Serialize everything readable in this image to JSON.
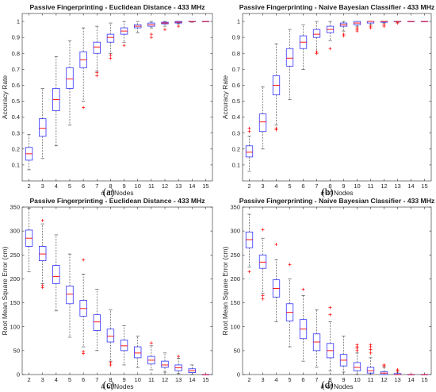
{
  "colors": {
    "box": "#3333ff",
    "median": "#ff0000",
    "whisker": "#333333",
    "outlier": "#ff0000"
  },
  "chart_data": [
    {
      "type": "box",
      "panel_label": "(a)",
      "title": "Passive Fingerprinting - Euclidean Distance - 433 MHz",
      "xlabel": "# of Nodes",
      "ylabel": "Accuracy Rate",
      "categories": [
        "2",
        "3",
        "4",
        "5",
        "6",
        "7",
        "8",
        "9",
        "10",
        "11",
        "12",
        "13",
        "14",
        "15"
      ],
      "ylim": [
        0.0,
        1.05
      ],
      "yticks": [
        0.1,
        0.2,
        0.3,
        0.4,
        0.5,
        0.6,
        0.7,
        0.8,
        0.9,
        1
      ],
      "ytick_labels": [
        "0.1",
        "0.2",
        "0.3",
        "0.4",
        "0.5",
        "0.6",
        "0.7",
        "0.8",
        "0.9",
        "1"
      ],
      "boxes": [
        {
          "min": 0.07,
          "q1": 0.13,
          "median": 0.17,
          "q3": 0.21,
          "max": 0.29,
          "outliers": []
        },
        {
          "min": 0.14,
          "q1": 0.28,
          "median": 0.33,
          "q3": 0.39,
          "max": 0.58,
          "outliers": []
        },
        {
          "min": 0.22,
          "q1": 0.44,
          "median": 0.51,
          "q3": 0.58,
          "max": 0.78,
          "outliers": []
        },
        {
          "min": 0.35,
          "q1": 0.58,
          "median": 0.64,
          "q3": 0.71,
          "max": 0.88,
          "outliers": []
        },
        {
          "min": 0.5,
          "q1": 0.71,
          "median": 0.76,
          "q3": 0.81,
          "max": 0.96,
          "outliers": [
            0.46
          ]
        },
        {
          "min": 0.69,
          "q1": 0.8,
          "median": 0.84,
          "q3": 0.87,
          "max": 0.97,
          "outliers": [
            0.66,
            0.68
          ]
        },
        {
          "min": 0.8,
          "q1": 0.87,
          "median": 0.9,
          "q3": 0.92,
          "max": 0.99,
          "outliers": [
            0.77,
            0.79
          ]
        },
        {
          "min": 0.87,
          "q1": 0.92,
          "median": 0.94,
          "q3": 0.96,
          "max": 1.0,
          "outliers": [
            0.85
          ]
        },
        {
          "min": 0.93,
          "q1": 0.96,
          "median": 0.97,
          "q3": 0.98,
          "max": 1.0,
          "outliers": []
        },
        {
          "min": 0.96,
          "q1": 0.97,
          "median": 0.98,
          "q3": 0.99,
          "max": 1.0,
          "outliers": [
            0.9,
            0.92
          ]
        },
        {
          "min": 0.97,
          "q1": 0.985,
          "median": 0.99,
          "q3": 0.995,
          "max": 1.0,
          "outliers": [
            0.95
          ]
        },
        {
          "min": 0.985,
          "q1": 0.99,
          "median": 0.995,
          "q3": 1.0,
          "max": 1.0,
          "outliers": [
            0.97
          ]
        },
        {
          "min": 0.995,
          "q1": 0.998,
          "median": 1.0,
          "q3": 1.0,
          "max": 1.0,
          "outliers": []
        },
        {
          "min": 1.0,
          "q1": 1.0,
          "median": 1.0,
          "q3": 1.0,
          "max": 1.0,
          "outliers": []
        }
      ]
    },
    {
      "type": "box",
      "panel_label": "(b)",
      "title": "Passive Fingerprinting - Naive Bayesian Classifier - 433 MHz",
      "xlabel": "# of Nodes",
      "ylabel": "Accuracy Rate",
      "categories": [
        "2",
        "3",
        "4",
        "5",
        "6",
        "7",
        "8",
        "9",
        "10",
        "11",
        "12",
        "13",
        "14",
        "15"
      ],
      "ylim": [
        0.0,
        1.05
      ],
      "yticks": [
        0.1,
        0.2,
        0.3,
        0.4,
        0.5,
        0.6,
        0.7,
        0.8,
        0.9,
        1
      ],
      "ytick_labels": [
        "0.1",
        "0.2",
        "0.3",
        "0.4",
        "0.5",
        "0.6",
        "0.7",
        "0.8",
        "0.9",
        "1"
      ],
      "boxes": [
        {
          "min": 0.06,
          "q1": 0.15,
          "median": 0.18,
          "q3": 0.22,
          "max": 0.28,
          "outliers": [
            0.31,
            0.33
          ]
        },
        {
          "min": 0.2,
          "q1": 0.31,
          "median": 0.37,
          "q3": 0.42,
          "max": 0.59,
          "outliers": []
        },
        {
          "min": 0.35,
          "q1": 0.54,
          "median": 0.6,
          "q3": 0.66,
          "max": 0.86,
          "outliers": [
            0.32,
            0.33
          ]
        },
        {
          "min": 0.51,
          "q1": 0.72,
          "median": 0.77,
          "q3": 0.83,
          "max": 0.95,
          "outliers": []
        },
        {
          "min": 0.7,
          "q1": 0.83,
          "median": 0.87,
          "q3": 0.91,
          "max": 0.98,
          "outliers": []
        },
        {
          "min": 0.8,
          "q1": 0.9,
          "median": 0.92,
          "q3": 0.95,
          "max": 1.0,
          "outliers": [
            0.8,
            0.81
          ]
        },
        {
          "min": 0.88,
          "q1": 0.93,
          "median": 0.95,
          "q3": 0.97,
          "max": 1.0,
          "outliers": [
            0.83
          ]
        },
        {
          "min": 0.94,
          "q1": 0.97,
          "median": 0.98,
          "q3": 0.99,
          "max": 1.0,
          "outliers": [
            0.91,
            0.92
          ]
        },
        {
          "min": 0.97,
          "q1": 0.98,
          "median": 0.99,
          "q3": 1.0,
          "max": 1.0,
          "outliers": [
            0.94,
            0.95,
            0.96
          ]
        },
        {
          "min": 0.98,
          "q1": 0.99,
          "median": 1.0,
          "q3": 1.0,
          "max": 1.0,
          "outliers": [
            0.96,
            0.97
          ]
        },
        {
          "min": 0.99,
          "q1": 0.995,
          "median": 1.0,
          "q3": 1.0,
          "max": 1.0,
          "outliers": [
            0.97,
            0.98
          ]
        },
        {
          "min": 0.995,
          "q1": 1.0,
          "median": 1.0,
          "q3": 1.0,
          "max": 1.0,
          "outliers": [
            0.99
          ]
        },
        {
          "min": 1.0,
          "q1": 1.0,
          "median": 1.0,
          "q3": 1.0,
          "max": 1.0,
          "outliers": []
        },
        {
          "min": 1.0,
          "q1": 1.0,
          "median": 1.0,
          "q3": 1.0,
          "max": 1.0,
          "outliers": []
        }
      ]
    },
    {
      "type": "box",
      "panel_label": "(c)",
      "title": "Passive Fingerprinting - Euclidean Distance - 433 MHz",
      "xlabel": "# of Nodes",
      "ylabel": "Root Mean Square Error (cm)",
      "categories": [
        "2",
        "3",
        "4",
        "5",
        "6",
        "7",
        "8",
        "9",
        "10",
        "11",
        "12",
        "13",
        "14",
        "15"
      ],
      "ylim": [
        0,
        350
      ],
      "yticks": [
        0,
        50,
        100,
        150,
        200,
        250,
        300,
        350
      ],
      "ytick_labels": [
        "0",
        "50",
        "100",
        "150",
        "200",
        "250",
        "300",
        "350"
      ],
      "boxes": [
        {
          "min": 215,
          "q1": 268,
          "median": 285,
          "q3": 302,
          "max": 348,
          "outliers": []
        },
        {
          "min": 190,
          "q1": 238,
          "median": 252,
          "q3": 268,
          "max": 315,
          "outliers": [
            182,
            186,
            322
          ]
        },
        {
          "min": 133,
          "q1": 190,
          "median": 205,
          "q3": 228,
          "max": 292,
          "outliers": []
        },
        {
          "min": 78,
          "q1": 148,
          "median": 168,
          "q3": 185,
          "max": 252,
          "outliers": []
        },
        {
          "min": 58,
          "q1": 122,
          "median": 138,
          "q3": 155,
          "max": 210,
          "outliers": [
            44,
            48,
            240
          ]
        },
        {
          "min": 50,
          "q1": 92,
          "median": 110,
          "q3": 125,
          "max": 178,
          "outliers": []
        },
        {
          "min": 28,
          "q1": 68,
          "median": 80,
          "q3": 95,
          "max": 135,
          "outliers": [
            20,
            25
          ]
        },
        {
          "min": 20,
          "q1": 50,
          "median": 60,
          "q3": 72,
          "max": 102,
          "outliers": []
        },
        {
          "min": 15,
          "q1": 35,
          "median": 45,
          "q3": 58,
          "max": 80,
          "outliers": []
        },
        {
          "min": 10,
          "q1": 22,
          "median": 30,
          "q3": 38,
          "max": 60,
          "outliers": [
            66
          ]
        },
        {
          "min": 5,
          "q1": 15,
          "median": 20,
          "q3": 28,
          "max": 45,
          "outliers": []
        },
        {
          "min": 2,
          "q1": 8,
          "median": 14,
          "q3": 20,
          "max": 34,
          "outliers": [
            38
          ]
        },
        {
          "min": 0,
          "q1": 4,
          "median": 8,
          "q3": 12,
          "max": 20,
          "outliers": []
        },
        {
          "min": 0,
          "q1": 0,
          "median": 0,
          "q3": 0,
          "max": 0,
          "outliers": []
        }
      ]
    },
    {
      "type": "box",
      "panel_label": "(d)",
      "title": "Passive Fingerprinting - Naive Bayesian Classifier - 433 MHz",
      "xlabel": "# of Nodes",
      "ylabel": "Root Mean Square Error (cm)",
      "categories": [
        "2",
        "3",
        "4",
        "5",
        "6",
        "7",
        "8",
        "9",
        "10",
        "11",
        "12",
        "13",
        "14",
        "15"
      ],
      "ylim": [
        0,
        350
      ],
      "yticks": [
        0,
        50,
        100,
        150,
        200,
        250,
        300,
        350
      ],
      "ytick_labels": [
        "0",
        "50",
        "100",
        "150",
        "200",
        "250",
        "300",
        "350"
      ],
      "boxes": [
        {
          "min": 225,
          "q1": 265,
          "median": 282,
          "q3": 298,
          "max": 335,
          "outliers": [
            215
          ]
        },
        {
          "min": 170,
          "q1": 222,
          "median": 235,
          "q3": 250,
          "max": 285,
          "outliers": [
            158,
            165,
            303
          ]
        },
        {
          "min": 110,
          "q1": 162,
          "median": 180,
          "q3": 198,
          "max": 240,
          "outliers": [
            272
          ]
        },
        {
          "min": 58,
          "q1": 112,
          "median": 130,
          "q3": 148,
          "max": 200,
          "outliers": [
            230
          ]
        },
        {
          "min": 28,
          "q1": 75,
          "median": 95,
          "q3": 115,
          "max": 165,
          "outliers": [
            178
          ]
        },
        {
          "min": 15,
          "q1": 50,
          "median": 68,
          "q3": 85,
          "max": 135,
          "outliers": []
        },
        {
          "min": 8,
          "q1": 35,
          "median": 50,
          "q3": 65,
          "max": 110,
          "outliers": [
            125,
            140
          ]
        },
        {
          "min": 5,
          "q1": 18,
          "median": 30,
          "q3": 42,
          "max": 80,
          "outliers": []
        },
        {
          "min": 0,
          "q1": 8,
          "median": 15,
          "q3": 25,
          "max": 45,
          "outliers": [
            50,
            55,
            58,
            62
          ]
        },
        {
          "min": 0,
          "q1": 3,
          "median": 8,
          "q3": 15,
          "max": 35,
          "outliers": [
            45,
            52,
            58,
            62
          ]
        },
        {
          "min": 0,
          "q1": 0,
          "median": 3,
          "q3": 6,
          "max": 15,
          "outliers": [
            18,
            20
          ]
        },
        {
          "min": 0,
          "q1": 0,
          "median": 0,
          "q3": 2,
          "max": 5,
          "outliers": [
            8,
            10
          ]
        },
        {
          "min": 0,
          "q1": 0,
          "median": 0,
          "q3": 0,
          "max": 0,
          "outliers": []
        },
        {
          "min": 0,
          "q1": 0,
          "median": 0,
          "q3": 0,
          "max": 0,
          "outliers": []
        }
      ]
    }
  ]
}
